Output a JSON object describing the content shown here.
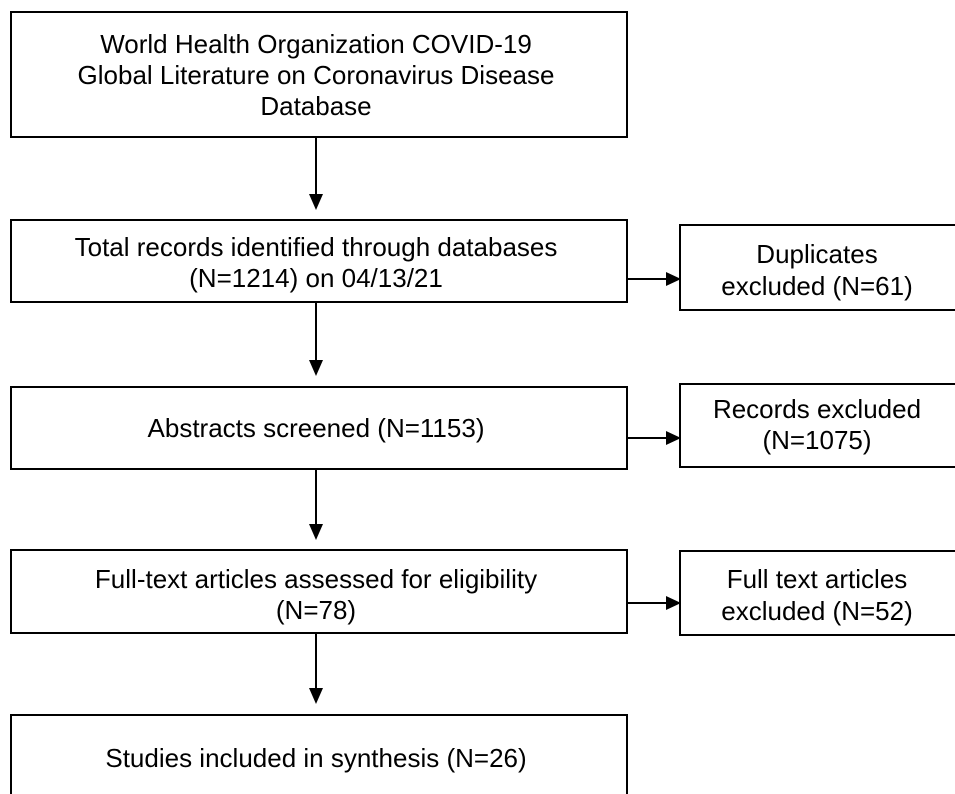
{
  "nodes": [
    {
      "lines": [
        "World Health Organization COVID-19",
        "Global Literature on Coronavirus Disease",
        "Database"
      ]
    },
    {
      "lines": [
        "Total records identified through databases",
        "(N=1214) on 04/13/21"
      ]
    },
    {
      "lines": [
        "Abstracts screened (N=1153)"
      ]
    },
    {
      "lines": [
        "Full-text articles assessed for eligibility",
        "(N=78)"
      ]
    },
    {
      "lines": [
        "Studies included in synthesis (N=26)"
      ]
    }
  ],
  "exclusions": [
    {
      "lines": [
        "Duplicates",
        "excluded (N=61)"
      ]
    },
    {
      "lines": [
        "Records excluded",
        "(N=1075)"
      ]
    },
    {
      "lines": [
        "Full text articles",
        "excluded (N=52)"
      ]
    }
  ]
}
